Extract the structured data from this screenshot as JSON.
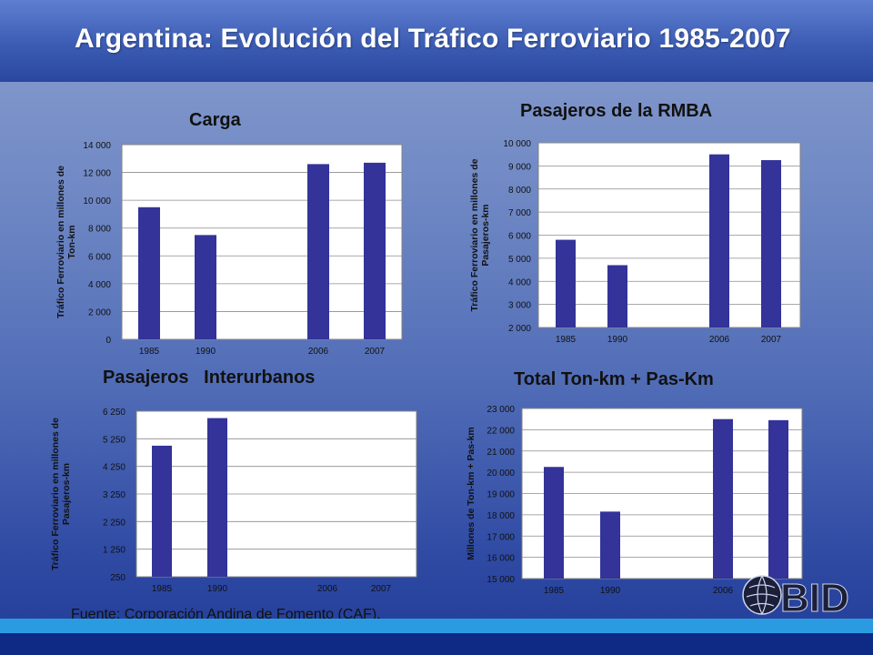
{
  "title": "Argentina: Evolución del Tráfico Ferroviario 1985-2007",
  "source": "Fuente: Corporación Andina de Fomento (CAF).",
  "logo_text": "BID",
  "colors": {
    "bar": "#333399",
    "plot_bg": "#ffffff",
    "grid": "#8c8c8c",
    "header": "#3c5cb4",
    "stripe": "#2a9be0"
  },
  "chart_data": [
    {
      "type": "bar",
      "title": "Carga",
      "ylabel": "Tráfico Ferroviario en millones de Ton-km",
      "categories": [
        "1985",
        "1990",
        "2006",
        "2007"
      ],
      "values": [
        9500,
        7500,
        12600,
        12700
      ],
      "ylim": [
        0,
        14000
      ],
      "yticks": [
        "0",
        "2 000",
        "4 000",
        "6 000",
        "8 000",
        "10 000",
        "12 000",
        "14 000"
      ],
      "grid": true
    },
    {
      "type": "bar",
      "title": "Pasajeros de la RMBA",
      "ylabel": "Tráfico Ferroviario en millones de Pasajeros-km",
      "categories": [
        "1985",
        "1990",
        "2006",
        "2007"
      ],
      "values": [
        5800,
        4700,
        9500,
        9250
      ],
      "ylim": [
        2000,
        10000
      ],
      "yticks": [
        "2 000",
        "3 000",
        "4 000",
        "5 000",
        "6 000",
        "7 000",
        "8 000",
        "9 000",
        "10 000"
      ],
      "grid": true
    },
    {
      "type": "bar",
      "title": "Pasajeros   Interurbanos",
      "ylabel": "Tráfico Ferroviario en millones de Pasajeros-km",
      "categories": [
        "1985",
        "1990",
        "2006",
        "2007"
      ],
      "values": [
        5000,
        6000,
        250,
        250
      ],
      "ylim": [
        250,
        6250
      ],
      "yticks": [
        "250",
        "1 250",
        "2 250",
        "3 250",
        "4 250",
        "5 250",
        "6 250"
      ],
      "grid": true
    },
    {
      "type": "bar",
      "title": "Total Ton-km + Pas-Km",
      "ylabel": "Millones de Ton-km + Pas-km",
      "categories": [
        "1985",
        "1990",
        "2006",
        "2007"
      ],
      "values": [
        20250,
        18150,
        22500,
        22450
      ],
      "ylim": [
        15000,
        23000
      ],
      "yticks": [
        "15 000",
        "16 000",
        "17 000",
        "18 000",
        "19 000",
        "20 000",
        "21 000",
        "22 000",
        "23 000"
      ],
      "grid": true
    }
  ]
}
